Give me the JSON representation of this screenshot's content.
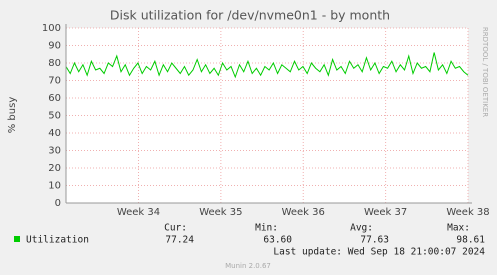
{
  "chart_data": {
    "type": "line",
    "title": "Disk utilization for /dev/nvme0n1 - by month",
    "y_label": "% busy",
    "side_text": "RRDTOOL / TOBI OETIKER",
    "ylim": [
      0,
      100
    ],
    "yticks": [
      0,
      10,
      20,
      30,
      40,
      50,
      60,
      70,
      80,
      90,
      100
    ],
    "xlim": [
      33.12,
      38.0
    ],
    "xticks": [
      {
        "value": 34,
        "label": "Week 34"
      },
      {
        "value": 35,
        "label": "Week 35"
      },
      {
        "value": 36,
        "label": "Week 36"
      },
      {
        "value": 37,
        "label": "Week 37"
      },
      {
        "value": 38,
        "label": "Week 38"
      }
    ],
    "grid": true,
    "series": [
      {
        "name": "Utilization",
        "color": "#00cc00",
        "values": [
          78,
          74,
          80,
          75,
          79,
          73,
          81,
          76,
          77,
          74,
          80,
          78,
          84,
          75,
          79,
          73,
          77,
          80,
          74,
          78,
          76,
          81,
          73,
          79,
          75,
          80,
          77,
          74,
          78,
          73,
          76,
          82,
          75,
          79,
          74,
          77,
          73,
          80,
          76,
          78,
          72,
          79,
          75,
          81,
          74,
          77,
          73,
          78,
          76,
          80,
          74,
          79,
          77,
          75,
          81,
          76,
          78,
          74,
          80,
          77,
          75,
          79,
          73,
          82,
          76,
          78,
          74,
          81,
          77,
          79,
          75,
          83,
          76,
          80,
          74,
          78,
          77,
          81,
          75,
          79,
          76,
          84,
          74,
          80,
          77,
          78,
          75,
          86,
          76,
          79,
          74,
          81,
          77,
          78,
          75,
          73
        ]
      }
    ],
    "stats": {
      "headers": [
        "Cur:",
        "Min:",
        "Avg:",
        "Max:"
      ],
      "values": [
        "77.24",
        "63.60",
        "77.63",
        "98.61"
      ]
    },
    "last_update": "Last update: Wed Sep 18 21:00:07 2024",
    "footer": "Munin 2.0.67"
  }
}
